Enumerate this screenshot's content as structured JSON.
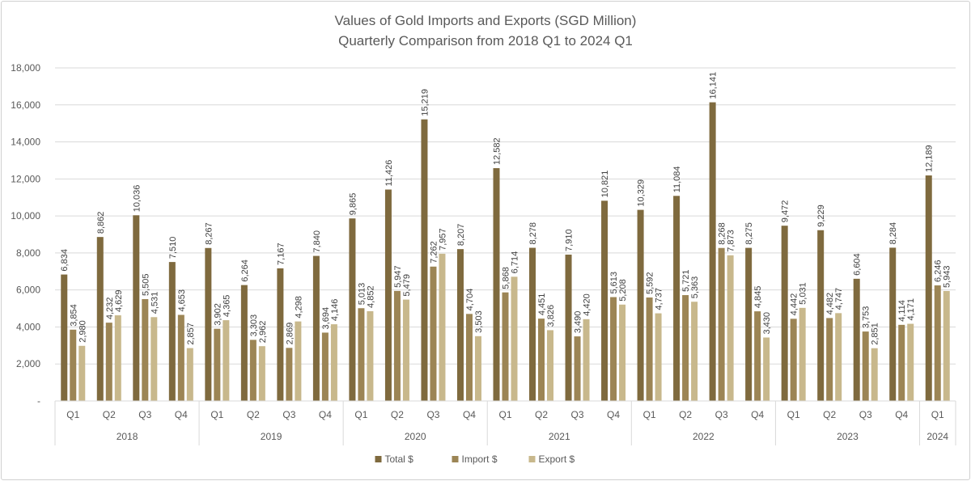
{
  "chart_data": {
    "type": "bar",
    "title": "Values of Gold Imports and Exports (SGD Million)",
    "subtitle": "Quarterly Comparison from 2018 Q1 to 2024 Q1",
    "ylim": [
      0,
      18000
    ],
    "yticks": [
      "-",
      "2,000",
      "4,000",
      "6,000",
      "8,000",
      "10,000",
      "12,000",
      "14,000",
      "16,000",
      "18,000"
    ],
    "grid": true,
    "legend_position": "bottom",
    "groups": [
      {
        "label": "2018",
        "quarters": [
          "Q1",
          "Q2",
          "Q3",
          "Q4"
        ]
      },
      {
        "label": "2019",
        "quarters": [
          "Q1",
          "Q2",
          "Q3",
          "Q4"
        ]
      },
      {
        "label": "2020",
        "quarters": [
          "Q1",
          "Q2",
          "Q3",
          "Q4"
        ]
      },
      {
        "label": "2021",
        "quarters": [
          "Q1",
          "Q2",
          "Q3",
          "Q4"
        ]
      },
      {
        "label": "2022",
        "quarters": [
          "Q1",
          "Q2",
          "Q3",
          "Q4"
        ]
      },
      {
        "label": "2023",
        "quarters": [
          "Q1",
          "Q2",
          "Q3",
          "Q4"
        ]
      },
      {
        "label": "2024",
        "quarters": [
          "Q1"
        ]
      }
    ],
    "series": [
      {
        "name": "Total $",
        "color": "#7f6a3e",
        "values": [
          6834,
          8862,
          10036,
          7510,
          8267,
          6264,
          7167,
          7840,
          9865,
          11426,
          15219,
          8207,
          12582,
          8278,
          7910,
          10821,
          10329,
          11084,
          16141,
          8275,
          9472,
          9229,
          6604,
          8284,
          12189
        ],
        "labels": [
          "6,834",
          "8,862",
          "10,036",
          "7,510",
          "8,267",
          "6,264",
          "7,167",
          "7,840",
          "9,865",
          "11,426",
          "15,219",
          "8,207",
          "12,582",
          "8,278",
          "7,910",
          "10,821",
          "10,329",
          "11,084",
          "16,141",
          "8,275",
          "9,472",
          "9,229",
          "6,604",
          "8,284",
          "12,189"
        ]
      },
      {
        "name": "Import $",
        "color": "#9c8555",
        "values": [
          3854,
          4232,
          5505,
          4653,
          3902,
          3303,
          2869,
          3694,
          5013,
          5947,
          7262,
          4704,
          5868,
          4451,
          3490,
          5613,
          5592,
          5721,
          8268,
          4845,
          4442,
          4482,
          3753,
          4114,
          6246
        ],
        "labels": [
          "3,854",
          "4,232",
          "5,505",
          "4,653",
          "3,902",
          "3,303",
          "2,869",
          "3,694",
          "5,013",
          "5,947",
          "7,262",
          "4,704",
          "5,868",
          "4,451",
          "3,490",
          "5,613",
          "5,592",
          "5,721",
          "8,268",
          "4,845",
          "4,442",
          "4,482",
          "3,753",
          "4,114",
          "6,246"
        ]
      },
      {
        "name": "Export $",
        "color": "#c8b88c",
        "values": [
          2980,
          4629,
          4531,
          2857,
          4365,
          2962,
          4298,
          4146,
          4852,
          5479,
          7957,
          3503,
          6714,
          3826,
          4420,
          5208,
          4737,
          5363,
          7873,
          3430,
          5031,
          4747,
          2851,
          4171,
          5943
        ],
        "labels": [
          "2,980",
          "4,629",
          "4,531",
          "2,857",
          "4,365",
          "2,962",
          "4,298",
          "4,146",
          "4,852",
          "5,479",
          "7,957",
          "3,503",
          "6,714",
          "3,826",
          "4,420",
          "5,208",
          "4,737",
          "5,363",
          "7,873",
          "3,430",
          "5,031",
          "4,747",
          "2,851",
          "4,171",
          "5,943"
        ]
      }
    ]
  }
}
